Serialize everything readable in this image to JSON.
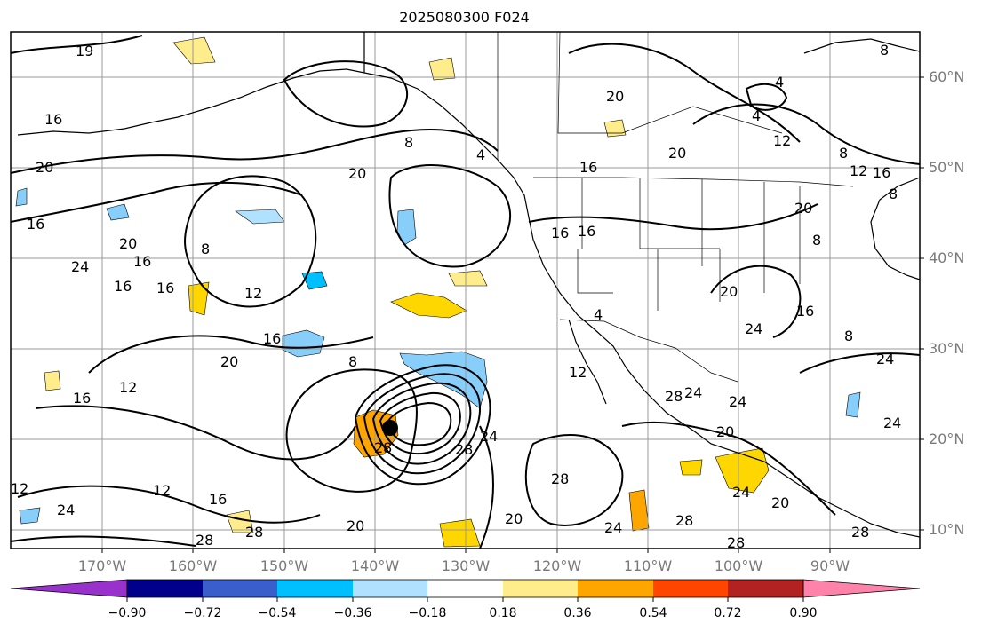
{
  "title": "2025080300 F024",
  "latitude_labels": [
    "60°N",
    "50°N",
    "40°N",
    "30°N",
    "20°N",
    "10°N"
  ],
  "longitude_labels": [
    "170°W",
    "160°W",
    "150°W",
    "140°W",
    "130°W",
    "120°W",
    "110°W",
    "100°W",
    "90°W"
  ],
  "contour_labels": [
    "8",
    "12",
    "16",
    "20",
    "24",
    "28",
    "4",
    "19"
  ],
  "colorbar": {
    "ticks": [
      "−0.90",
      "−0.72",
      "−0.54",
      "−0.36",
      "−0.18",
      "0.18",
      "0.36",
      "0.54",
      "0.72",
      "0.90"
    ],
    "colors": [
      "#9932cc",
      "#00008b",
      "#3a5fcd",
      "#00bfff",
      "#b0e2ff",
      "#ffffff",
      "#ffec8b",
      "#ffa500",
      "#ff4500",
      "#b22222",
      "#ff82ab"
    ],
    "extend": "both"
  },
  "features": {
    "storm_center_icon": "filled-circle",
    "shading_colors": {
      "negative": "#87cefa",
      "positive": "#ffd700",
      "strong_positive": "#ffa500"
    }
  }
}
